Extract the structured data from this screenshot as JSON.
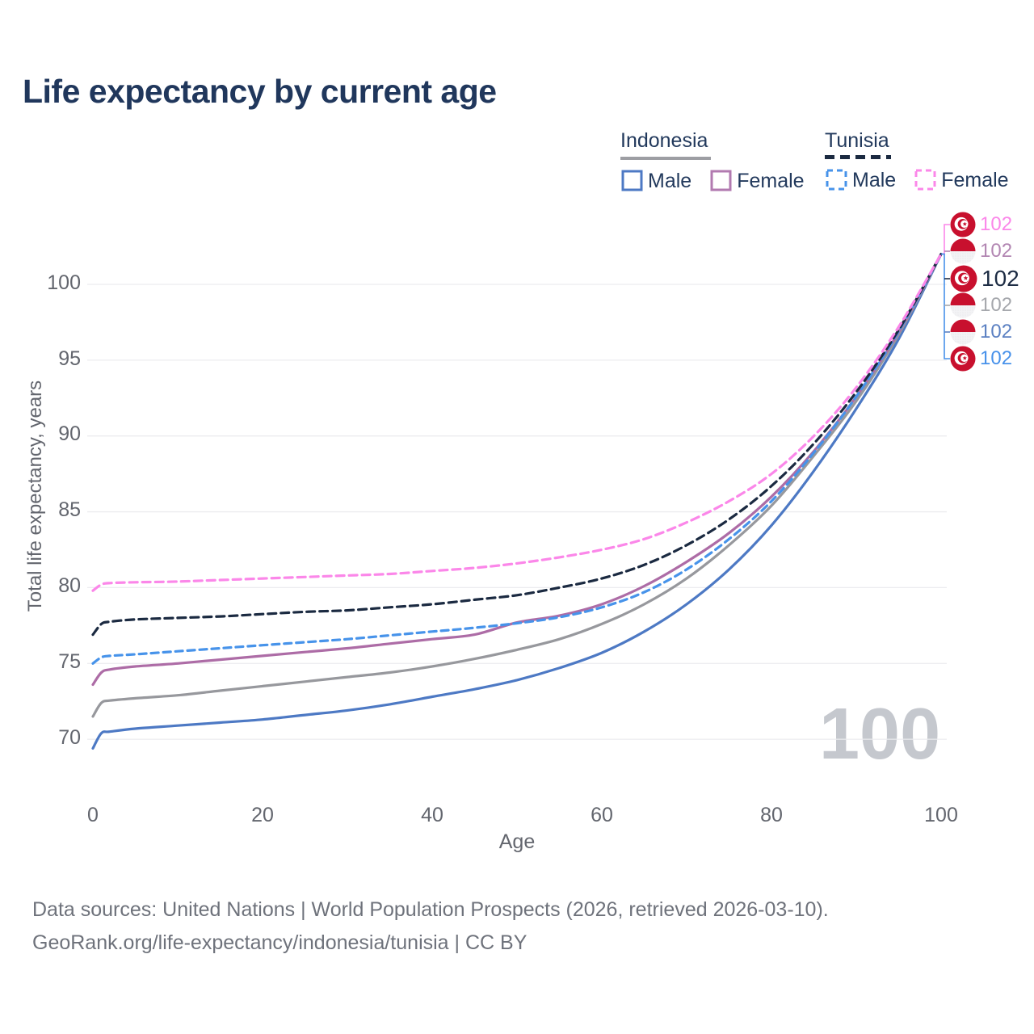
{
  "title": "Life expectancy by current age",
  "legend": {
    "groups": [
      {
        "label": "Indonesia",
        "line_style": "solid",
        "underline_color": "#9d9ea3",
        "items": [
          {
            "label": "Male",
            "color": "#4d79c4"
          },
          {
            "label": "Female",
            "color": "#b27ab0"
          }
        ]
      },
      {
        "label": "Tunisia",
        "line_style": "dashed",
        "underline_color": "#1b2a41",
        "items": [
          {
            "label": "Male",
            "color": "#4793ea"
          },
          {
            "label": "Female",
            "color": "#fb87e9"
          }
        ]
      }
    ]
  },
  "axes": {
    "y_title": "Total life expectancy, years",
    "x_title": "Age",
    "y_tick_labels": [
      "100",
      "95",
      "90",
      "85",
      "80",
      "75",
      "70"
    ],
    "x_tick_labels": [
      "0",
      "20",
      "40",
      "60",
      "80",
      "100"
    ]
  },
  "watermark": "100",
  "end_labels": [
    {
      "value": "102",
      "color": "#fb87e9",
      "flag": "tunisia-flag-icon",
      "series": "tunisia-female"
    },
    {
      "value": "102",
      "color": "#b286b2",
      "flag": "indonesia-flag-icon",
      "series": "indonesia-female"
    },
    {
      "value": "102",
      "color": "#1d2c44",
      "flag": "tunisia-flag-icon",
      "series": "tunisia-total"
    },
    {
      "value": "102",
      "color": "#a5a7ac",
      "flag": "indonesia-flag-icon",
      "series": "indonesia-total"
    },
    {
      "value": "102",
      "color": "#5b80c2",
      "flag": "indonesia-flag-icon",
      "series": "indonesia-male"
    },
    {
      "value": "102",
      "color": "#4791ea",
      "flag": "tunisia-flag-icon",
      "series": "tunisia-male"
    }
  ],
  "footer": {
    "line1": "Data sources: United Nations | World Population Prospects (2026, retrieved 2026-03-10).",
    "line2": "GeoRank.org/life-expectancy/indonesia/tunisia | CC BY"
  },
  "chart_data": {
    "type": "line",
    "title": "Life expectancy by current age",
    "xlabel": "Age",
    "ylabel": "Total life expectancy, years",
    "x_ticks": [
      0,
      20,
      40,
      60,
      80,
      100
    ],
    "y_ticks": [
      70,
      75,
      80,
      85,
      90,
      95,
      100
    ],
    "xlim": [
      0,
      100
    ],
    "grid": true,
    "legend_position": "top-right",
    "ages": [
      0,
      1,
      2,
      5,
      10,
      15,
      20,
      25,
      30,
      35,
      40,
      45,
      50,
      55,
      60,
      65,
      70,
      75,
      80,
      85,
      90,
      95,
      100
    ],
    "series": [
      {
        "id": "indonesia-male",
        "name": "Indonesia Male",
        "country": "Indonesia",
        "sex": "Male",
        "color": "#4d79c4",
        "dash": "",
        "values": [
          69.4,
          70.4,
          70.5,
          70.7,
          70.9,
          71.1,
          71.3,
          71.6,
          71.9,
          72.3,
          72.8,
          73.3,
          73.9,
          74.7,
          75.7,
          77.1,
          78.9,
          81.2,
          84.1,
          87.7,
          91.8,
          96.4,
          102
        ]
      },
      {
        "id": "indonesia-total",
        "name": "Indonesia",
        "country": "Indonesia",
        "sex": "Both",
        "color": "#97989d",
        "dash": "",
        "values": [
          71.5,
          72.4,
          72.55,
          72.7,
          72.9,
          73.2,
          73.5,
          73.8,
          74.1,
          74.4,
          74.8,
          75.3,
          75.9,
          76.6,
          77.6,
          78.9,
          80.6,
          82.8,
          85.4,
          88.7,
          92.3,
          96.7,
          102
        ]
      },
      {
        "id": "indonesia-female",
        "name": "Indonesia Female",
        "country": "Indonesia",
        "sex": "Female",
        "color": "#ad6ca6",
        "dash": "",
        "values": [
          73.6,
          74.4,
          74.6,
          74.8,
          75.0,
          75.25,
          75.5,
          75.75,
          76.0,
          76.3,
          76.6,
          76.9,
          77.7,
          78.15,
          78.9,
          80.1,
          81.7,
          83.6,
          86.0,
          89.0,
          92.6,
          96.85,
          102
        ]
      },
      {
        "id": "tunisia-male",
        "name": "Tunisia Male",
        "country": "Tunisia",
        "sex": "Male",
        "color": "#4793ea",
        "dash": "9 6",
        "values": [
          75.0,
          75.4,
          75.5,
          75.6,
          75.8,
          76.0,
          76.2,
          76.4,
          76.6,
          76.85,
          77.1,
          77.35,
          77.65,
          78.05,
          78.7,
          79.7,
          81.2,
          83.2,
          85.7,
          88.9,
          92.6,
          96.9,
          102
        ]
      },
      {
        "id": "tunisia-total",
        "name": "Tunisia",
        "country": "Tunisia",
        "sex": "Both",
        "color": "#1b2a41",
        "dash": "10 6",
        "values": [
          76.9,
          77.6,
          77.75,
          77.9,
          78.0,
          78.1,
          78.25,
          78.4,
          78.5,
          78.7,
          78.9,
          79.2,
          79.5,
          80.0,
          80.6,
          81.5,
          82.8,
          84.5,
          86.7,
          89.5,
          92.9,
          97.0,
          102
        ]
      },
      {
        "id": "tunisia-female",
        "name": "Tunisia Female",
        "country": "Tunisia",
        "sex": "Female",
        "color": "#fb87e9",
        "dash": "10 6",
        "values": [
          79.8,
          80.2,
          80.3,
          80.35,
          80.4,
          80.5,
          80.6,
          80.7,
          80.8,
          80.9,
          81.1,
          81.3,
          81.6,
          82.0,
          82.5,
          83.2,
          84.3,
          85.7,
          87.5,
          90.0,
          93.2,
          97.2,
          102
        ]
      }
    ]
  }
}
